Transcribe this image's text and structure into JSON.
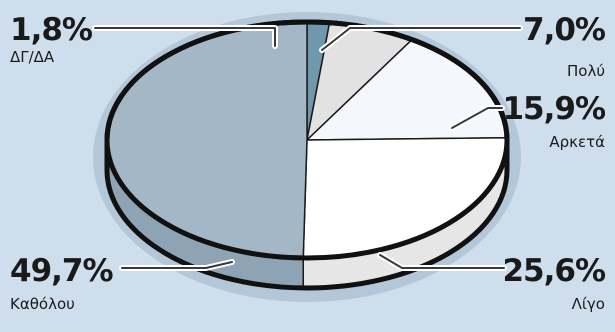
{
  "chart_data": {
    "type": "pie",
    "title": "",
    "categories": [
      "ΔΓ/ΔΑ",
      "Πολύ",
      "Αρκετά",
      "Λίγο",
      "Καθόλου"
    ],
    "values": [
      1.8,
      7.0,
      15.9,
      25.6,
      49.7
    ],
    "value_labels": [
      "1,8%",
      "7,0%",
      "15,9%",
      "25,6%",
      "49,7%"
    ],
    "colors": [
      "#6f98ac",
      "#e2e2e2",
      "#f4f7fb",
      "#ffffff",
      "#a3b7c7"
    ],
    "side_colors": [
      "#587f92",
      "#c4c4c4",
      "#d9dfe6",
      "#e6e6e6",
      "#8ea4b5"
    ],
    "start_angle_deg": -90,
    "direction": "clockwise",
    "style": "3d"
  }
}
